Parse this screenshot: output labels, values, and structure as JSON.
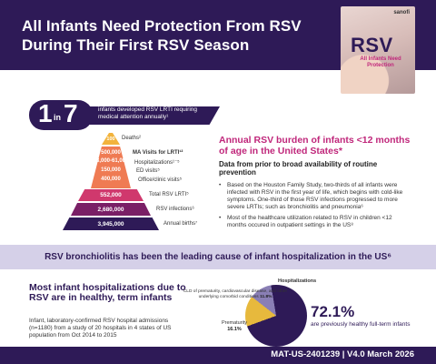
{
  "header": {
    "title": "All Infants Need Protection From RSV During Their First RSV Season",
    "brand": "sanofi",
    "image_word": "RSV",
    "image_subtitle": "All Infants Need Protection"
  },
  "stat": {
    "num1": "1",
    "in": "in",
    "num7": "7",
    "text": "infants developed RSV LRTI requiring medical attention annually¹"
  },
  "pyramid": {
    "levels": [
      {
        "value": "100",
        "label": "Deaths²"
      },
      {
        "value": "500,000",
        "label": "MA Visits for LRTI¹²"
      },
      {
        "value": "23,000-61,000",
        "label": "Hospitalizations¹⁻⁵"
      },
      {
        "value": "150,000",
        "label": "ED visits⁵"
      },
      {
        "value": "400,000",
        "label": "Office/clinic visits⁵"
      },
      {
        "value": "552,000",
        "label": "Total RSV LRTI⁵"
      },
      {
        "value": "2,680,000",
        "label": "RSV infections⁶"
      },
      {
        "value": "3,945,000",
        "label": "Annual births⁷"
      }
    ]
  },
  "right": {
    "title": "Annual RSV burden of infants <12 months of age in the United States*",
    "subtitle": "Data from prior to broad availability of routine prevention",
    "bullets": [
      "Based on the Houston Family Study, two-thirds of all infants were infected with RSV in the first year of life, which begins with cold-like symptoms. One-third of those RSV infections progressed to more severe LRTIs; such as bronchiolitis and pneumonia⁶",
      "Most of the healthcare utilization related to RSV in children <12 months occured in outpatient settings in the US⁸"
    ]
  },
  "banner": {
    "text": "RSV bronchiolitis has been the leading cause of infant hospitalization in the US⁶"
  },
  "bottom": {
    "title": "Most infant hospitalizations due to RSV are in healthy, term infants",
    "text": "Infant, laboratory-confirmed RSV hospital admissions (n=1180) from a study of 20 hospitals in 4 states of US population from Oct 2014 to 2015"
  },
  "pie": {
    "label_hosp": "Hospitalizations",
    "label_cld": "CLD of prematurity, cardiovascular disease, and other underlying comorbid conditions",
    "label_cld_pct": "11.8%",
    "label_prem": "Prematurity",
    "label_prem_pct": "16.1%",
    "big_pct": "72.1%",
    "big_label": "are previously healthy full-term infants",
    "colors": {
      "healthy": "#2e1a57",
      "prematurity": "#e7b93d",
      "cld": "#8a7fb5"
    }
  },
  "footer": {
    "code": "MAT-US-2401239 | V4.0 March 2026"
  }
}
